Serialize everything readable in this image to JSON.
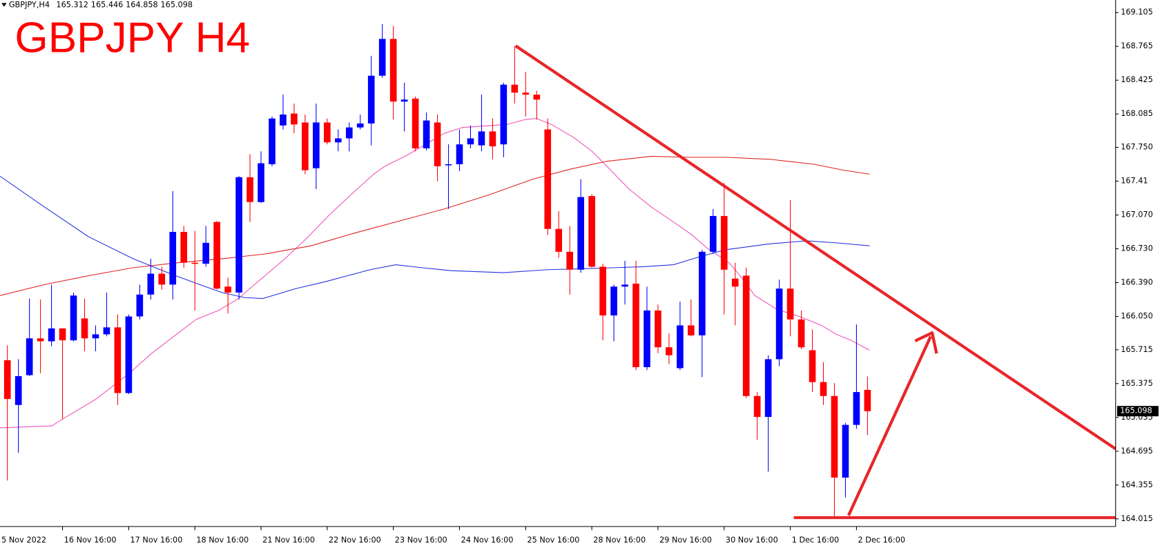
{
  "chart_data": {
    "type": "candlestick",
    "title": "GBPJPY H4",
    "header": {
      "symbol": "GBPJPY,H4",
      "open": 165.312,
      "high": 165.446,
      "low": 164.858,
      "close": 165.098
    },
    "up_color": "#0000ff",
    "down_color": "#ff0000",
    "xlim": [
      -0.67,
      100.5
    ],
    "xticks": [
      {
        "value": -1,
        "label": "5 Nov 2022"
      },
      {
        "value": 5,
        "label": "16 Nov 16:00"
      },
      {
        "value": 11,
        "label": "17 Nov 16:00"
      },
      {
        "value": 17,
        "label": "18 Nov 16:00"
      },
      {
        "value": 23,
        "label": "21 Nov 16:00"
      },
      {
        "value": 29,
        "label": "22 Nov 16:00"
      },
      {
        "value": 35,
        "label": "23 Nov 16:00"
      },
      {
        "value": 41,
        "label": "24 Nov 16:00"
      },
      {
        "value": 47,
        "label": "25 Nov 16:00"
      },
      {
        "value": 53,
        "label": "28 Nov 16:00"
      },
      {
        "value": 59,
        "label": "29 Nov 16:00"
      },
      {
        "value": 65,
        "label": "30 Nov 16:00"
      },
      {
        "value": 71,
        "label": "1 Dec 16:00"
      },
      {
        "value": 77,
        "label": "2 Dec 16:00"
      }
    ],
    "ylim": [
      163.938,
      169.231
    ],
    "yticks": [
      169.105,
      168.765,
      168.425,
      168.085,
      {
        "value": 167.75,
        "label": "167.750"
      },
      167.41,
      {
        "value": 167.07,
        "label": "167.070"
      },
      {
        "value": 166.73,
        "label": "166.730"
      },
      {
        "value": 166.39,
        "label": "166.390"
      },
      {
        "value": 166.05,
        "label": "166.050"
      },
      165.715,
      165.375,
      165.035,
      164.695,
      164.355,
      164.015
    ],
    "open": [
      165.61,
      165.16,
      165.46,
      165.83,
      165.8,
      165.93,
      165.81,
      166.03,
      165.83,
      165.87,
      165.94,
      165.28,
      166.05,
      166.27,
      166.48,
      166.37,
      166.9,
      166.59,
      166.58,
      167.0,
      166.35,
      166.29,
      167.45,
      167.2,
      167.58,
      167.97,
      168.09,
      168.0,
      167.54,
      168.0,
      167.8,
      167.84,
      167.95,
      167.99,
      168.47,
      168.84,
      168.21,
      168.24,
      167.74,
      168.0,
      167.57,
      167.58,
      167.78,
      167.77,
      167.91,
      167.78,
      168.38,
      168.3,
      168.28,
      167.93,
      166.93,
      166.7,
      166.52,
      167.26,
      166.55,
      166.06,
      166.35,
      166.38,
      165.54,
      166.11,
      165.74,
      165.53,
      165.96,
      165.86,
      166.7,
      167.06,
      166.43,
      166.46,
      165.25,
      165.04,
      165.62,
      166.33,
      166.02,
      165.71,
      165.39,
      165.25,
      164.43,
      164.96,
      165.312
    ],
    "high": [
      165.76,
      165.62,
      166.23,
      166.22,
      166.37,
      165.93,
      166.29,
      166.23,
      165.96,
      166.29,
      166.07,
      166.07,
      166.37,
      166.63,
      166.55,
      167.31,
      166.96,
      166.91,
      166.96,
      167.01,
      166.44,
      167.46,
      167.68,
      167.71,
      168.06,
      168.28,
      168.19,
      168.08,
      168.19,
      168.04,
      167.93,
      168.0,
      168.08,
      168.67,
      168.99,
      168.97,
      168.4,
      168.26,
      168.1,
      168.08,
      167.78,
      167.93,
      167.97,
      168.28,
      168.04,
      168.4,
      168.77,
      168.51,
      168.32,
      168.04,
      167.11,
      166.96,
      167.43,
      167.28,
      166.58,
      166.37,
      166.61,
      166.61,
      166.35,
      166.17,
      165.88,
      166.2,
      166.22,
      166.72,
      167.13,
      167.39,
      166.59,
      166.54,
      165.29,
      165.66,
      166.42,
      167.22,
      166.11,
      165.92,
      165.59,
      165.38,
      164.98,
      165.97,
      165.446
    ],
    "low": [
      164.4,
      164.68,
      165.45,
      165.48,
      165.75,
      165.02,
      165.8,
      165.7,
      165.7,
      165.85,
      165.16,
      165.27,
      166.02,
      166.22,
      166.32,
      166.22,
      166.54,
      166.11,
      166.55,
      166.32,
      166.08,
      166.22,
      167.0,
      167.19,
      167.56,
      167.93,
      167.89,
      167.48,
      167.33,
      167.78,
      167.71,
      167.71,
      167.93,
      167.77,
      168.45,
      168.03,
      167.91,
      167.71,
      167.72,
      167.41,
      167.13,
      167.51,
      167.74,
      167.71,
      167.63,
      167.65,
      168.19,
      168.06,
      168.03,
      166.87,
      166.64,
      166.27,
      166.49,
      166.54,
      165.81,
      165.8,
      166.17,
      165.51,
      165.51,
      165.68,
      165.57,
      165.51,
      165.85,
      165.44,
      166.68,
      166.07,
      165.96,
      165.23,
      164.81,
      164.49,
      165.55,
      165.85,
      165.72,
      165.29,
      165.16,
      164.03,
      164.23,
      164.92,
      164.858
    ],
    "close": [
      165.22,
      165.45,
      165.83,
      165.8,
      165.93,
      165.81,
      166.26,
      165.83,
      165.87,
      165.94,
      165.28,
      166.05,
      166.27,
      166.48,
      166.37,
      166.9,
      166.59,
      166.58,
      166.79,
      166.33,
      166.29,
      167.45,
      167.2,
      167.59,
      168.04,
      168.08,
      167.98,
      167.52,
      168.0,
      167.8,
      167.84,
      167.95,
      167.99,
      168.47,
      168.84,
      168.21,
      168.23,
      167.74,
      168.02,
      167.56,
      167.58,
      167.78,
      167.84,
      167.91,
      167.76,
      168.38,
      168.3,
      168.28,
      168.23,
      166.93,
      166.7,
      166.52,
      167.25,
      166.55,
      166.06,
      166.35,
      166.37,
      165.54,
      166.11,
      165.74,
      165.66,
      165.96,
      165.86,
      166.7,
      167.06,
      166.52,
      166.35,
      165.25,
      165.04,
      165.62,
      166.33,
      166.02,
      165.74,
      165.39,
      165.25,
      164.43,
      164.96,
      165.29,
      165.098
    ],
    "overlays": [
      {
        "color": "#f050b8",
        "x": [
          -0.67,
          4.03,
          5.03,
          8.05,
          11.07,
          13.09,
          15.1,
          17.11,
          19.13,
          20.81,
          23.15,
          25.17,
          27.18,
          29.19,
          31.21,
          33.22,
          34.23,
          36.24,
          37.92,
          39.6,
          41.28,
          45.3,
          46.98,
          47.99,
          49.33,
          51.34,
          53.02,
          54.36,
          56.38,
          58.39,
          60.4,
          62.08,
          63.42,
          65.44,
          66.44,
          67.79,
          69.8,
          71.81,
          73.83,
          75.17,
          76.51,
          78.19
        ],
        "values": [
          164.93,
          164.95,
          165.02,
          165.22,
          165.48,
          165.68,
          165.85,
          166.02,
          166.11,
          166.22,
          166.44,
          166.63,
          166.84,
          167.07,
          167.28,
          167.48,
          167.56,
          167.67,
          167.78,
          167.89,
          167.95,
          167.98,
          168.03,
          168.04,
          167.98,
          167.85,
          167.71,
          167.56,
          167.33,
          167.15,
          167.0,
          166.87,
          166.74,
          166.59,
          166.46,
          166.26,
          166.12,
          166.05,
          165.96,
          165.87,
          165.81,
          165.71
        ]
      },
      {
        "color": "#2030e0",
        "x": [
          -0.67,
          3.36,
          7.38,
          11.41,
          14.77,
          17.45,
          19.46,
          21.48,
          23.15,
          26.17,
          28.86,
          30.87,
          32.89,
          35.23,
          37.58,
          40.27,
          44.97,
          48.99,
          52.35,
          57.72,
          60.4,
          63.09,
          65.1,
          69.13,
          72.48,
          75.17,
          78.19
        ],
        "values": [
          167.46,
          167.15,
          166.85,
          166.63,
          166.48,
          166.37,
          166.29,
          166.24,
          166.23,
          166.33,
          166.4,
          166.46,
          166.52,
          166.57,
          166.54,
          166.51,
          166.49,
          166.52,
          166.53,
          166.55,
          166.57,
          166.66,
          166.72,
          166.78,
          166.81,
          166.79,
          166.76
        ]
      },
      {
        "color": "#e02020",
        "x": [
          -0.67,
          3.36,
          7.38,
          11.41,
          15.44,
          19.46,
          23.49,
          27.52,
          31.54,
          35.57,
          39.6,
          43.62,
          47.65,
          51.01,
          54.36,
          58.39,
          61.74,
          65.1,
          69.13,
          73.15,
          75.84,
          78.19
        ],
        "values": [
          166.26,
          166.37,
          166.46,
          166.54,
          166.59,
          166.63,
          166.68,
          166.76,
          166.89,
          167.01,
          167.13,
          167.27,
          167.43,
          167.53,
          167.61,
          167.66,
          167.65,
          167.65,
          167.63,
          167.58,
          167.52,
          167.48
        ]
      }
    ]
  }
}
